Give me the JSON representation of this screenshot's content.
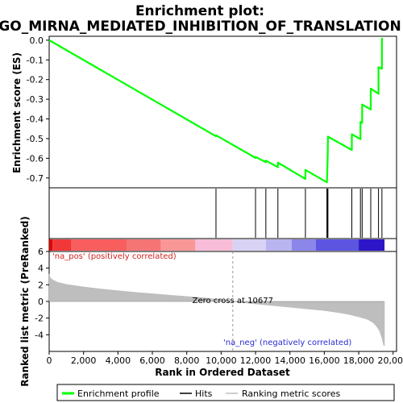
{
  "chart_data": {
    "type": "line",
    "title_lines": [
      "Enrichment plot:",
      "GO_MIRNA_MEDIATED_INHIBITION_OF_TRANSLATION"
    ],
    "panels": {
      "enrichment": {
        "ylabel": "Enrichment score (ES)",
        "ylim": [
          -0.75,
          0.02
        ],
        "yticks": [
          0.0,
          -0.1,
          -0.2,
          -0.3,
          -0.4,
          -0.5,
          -0.6,
          -0.7
        ],
        "ytick_labels": [
          "0.0",
          "-0.1",
          "-0.2",
          "-0.3",
          "-0.4",
          "-0.5",
          "-0.6",
          "-0.7"
        ],
        "series": [
          {
            "name": "Enrichment profile",
            "color": "#00ff00",
            "x": [
              0,
              9700,
              9701,
              12000,
              12001,
              12600,
              12601,
              13300,
              13301,
              14900,
              14901,
              16150,
              16160,
              16170,
              16180,
              16190,
              16200,
              16210,
              17600,
              17601,
              18100,
              18101,
              18200,
              18201,
              18700,
              18701,
              19150,
              19151,
              19350,
              19351,
              19400
            ],
            "y": [
              0.0,
              -0.488,
              -0.483,
              -0.598,
              -0.593,
              -0.62,
              -0.612,
              -0.645,
              -0.622,
              -0.705,
              -0.659,
              -0.722,
              -0.697,
              -0.67,
              -0.64,
              -0.608,
              -0.575,
              -0.49,
              -0.558,
              -0.478,
              -0.503,
              -0.415,
              -0.42,
              -0.327,
              -0.352,
              -0.246,
              -0.272,
              -0.137,
              -0.145,
              0.008,
              0.008
            ]
          }
        ]
      },
      "hits": {
        "name": "Hits",
        "x": [
          9700,
          12000,
          12600,
          13300,
          14900,
          16150,
          16170,
          16190,
          16210,
          17600,
          18100,
          18200,
          18700,
          19150,
          19350
        ]
      },
      "ranked_metric": {
        "name": "Ranking metric scores",
        "ylabel": "Ranked list metric (PreRanked)",
        "ylim": [
          -6,
          6
        ],
        "yticks": [
          6,
          4,
          2,
          0,
          -2,
          -4
        ],
        "ytick_labels": [
          "6",
          "4",
          "2",
          "0",
          "-2",
          "-4"
        ],
        "x": [
          0,
          50,
          200,
          500,
          1000,
          2000,
          3000,
          4000,
          5000,
          6000,
          7000,
          8000,
          9000,
          10000,
          10677,
          11000,
          12000,
          13000,
          14000,
          15000,
          16000,
          17000,
          17500,
          18000,
          18500,
          18800,
          19000,
          19200,
          19350,
          19450,
          19500
        ],
        "y": [
          3.3,
          2.9,
          2.6,
          2.3,
          2.05,
          1.75,
          1.5,
          1.3,
          1.1,
          0.93,
          0.76,
          0.6,
          0.44,
          0.2,
          0.0,
          -0.08,
          -0.3,
          -0.5,
          -0.7,
          -0.9,
          -1.1,
          -1.4,
          -1.6,
          -1.85,
          -2.15,
          -2.5,
          -2.9,
          -3.5,
          -4.4,
          -5.3,
          -5.3
        ],
        "color": "#bebebe",
        "annotations": {
          "positive": "'na_pos' (positively correlated)",
          "zero_cross": "Zero cross at 10677",
          "zero_cross_x": 10677,
          "negative": "'na_neg' (negatively correlated)"
        }
      }
    },
    "xaxis": {
      "xlabel": "Rank in Ordered Dataset",
      "xlim": [
        0,
        20200
      ],
      "xticks": [
        0,
        2000,
        4000,
        6000,
        8000,
        10000,
        12000,
        14000,
        16000,
        18000,
        20000
      ],
      "xtick_labels": [
        "0",
        "2,000",
        "4,000",
        "6,000",
        "8,000",
        "10,000",
        "12,000",
        "14,000",
        "16,000",
        "18,000",
        "20,000"
      ],
      "dataset_size": 19500
    },
    "colorbar": {
      "segments": [
        {
          "x_start": 0,
          "x_end": 200,
          "color": "#e00000"
        },
        {
          "x_start": 200,
          "x_end": 1300,
          "color": "#f03838"
        },
        {
          "x_start": 1300,
          "x_end": 4500,
          "color": "#f85e5e"
        },
        {
          "x_start": 4500,
          "x_end": 6500,
          "color": "#f57575"
        },
        {
          "x_start": 6500,
          "x_end": 8500,
          "color": "#f99797"
        },
        {
          "x_start": 8500,
          "x_end": 10677,
          "color": "#f7bcd7"
        },
        {
          "x_start": 10677,
          "x_end": 12600,
          "color": "#d8d2f5"
        },
        {
          "x_start": 12600,
          "x_end": 14100,
          "color": "#b8b5f0"
        },
        {
          "x_start": 14100,
          "x_end": 15500,
          "color": "#8c86ea"
        },
        {
          "x_start": 15500,
          "x_end": 18000,
          "color": "#5d55e0"
        },
        {
          "x_start": 18000,
          "x_end": 19500,
          "color": "#2d16c8"
        }
      ]
    },
    "legend": {
      "placement": "bottom",
      "items": [
        {
          "label": "Enrichment profile",
          "color": "#00ff00"
        },
        {
          "label": "Hits",
          "color": "#000000"
        },
        {
          "label": "Ranking metric scores",
          "color": "#bebebe"
        }
      ]
    }
  }
}
